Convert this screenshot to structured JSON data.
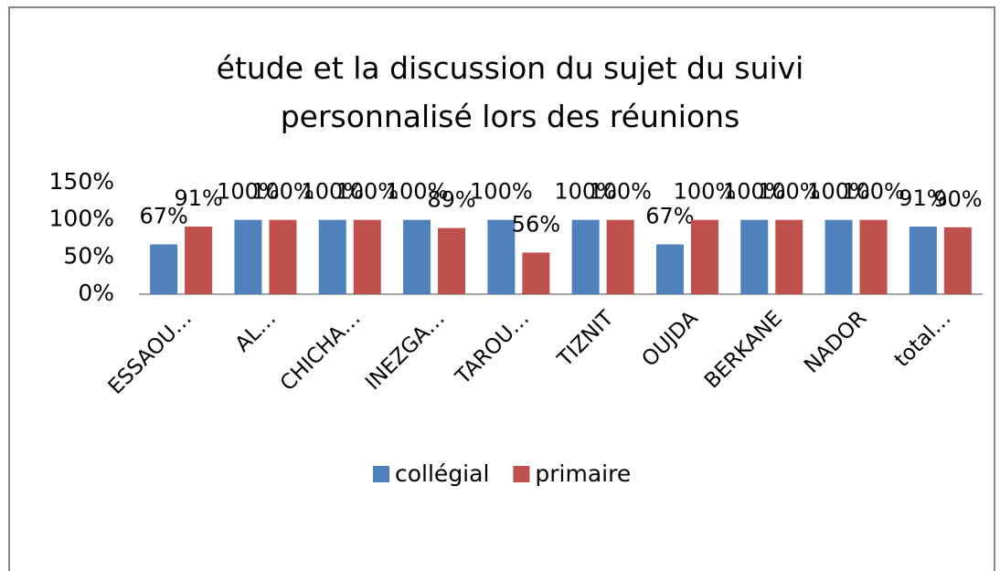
{
  "chart_data": {
    "type": "bar",
    "title": "étude et la discussion du sujet du suivi personnalisé lors des réunions",
    "categories": [
      "ESSAOU…",
      "AL…",
      "CHICHA…",
      "INEZGA…",
      "TAROU…",
      "TIZNIT",
      "OUJDA",
      "BERKANE",
      "NADOR",
      "total…"
    ],
    "series": [
      {
        "name": "collégial",
        "color": "#4f81bd",
        "values": [
          67,
          100,
          100,
          100,
          100,
          100,
          67,
          100,
          100,
          91
        ],
        "value_labels": [
          "67%",
          "100%",
          "100%",
          "100%",
          "100%",
          "100%",
          "67%",
          "100%",
          "100%",
          "91%"
        ]
      },
      {
        "name": "primaire",
        "color": "#c0504d",
        "values": [
          91,
          100,
          100,
          89,
          56,
          100,
          100,
          100,
          100,
          90
        ],
        "value_labels": [
          "91%",
          "100%",
          "100%",
          "89%",
          "56%",
          "100%",
          "100%",
          "100%",
          "100%",
          "90%"
        ]
      }
    ],
    "ylim": [
      0,
      150
    ],
    "yticks": [
      {
        "value": 0,
        "label": "0%"
      },
      {
        "value": 50,
        "label": "50%"
      },
      {
        "value": 100,
        "label": "100%"
      },
      {
        "value": 150,
        "label": "150%"
      }
    ],
    "grid": false,
    "legend": "bottom"
  }
}
